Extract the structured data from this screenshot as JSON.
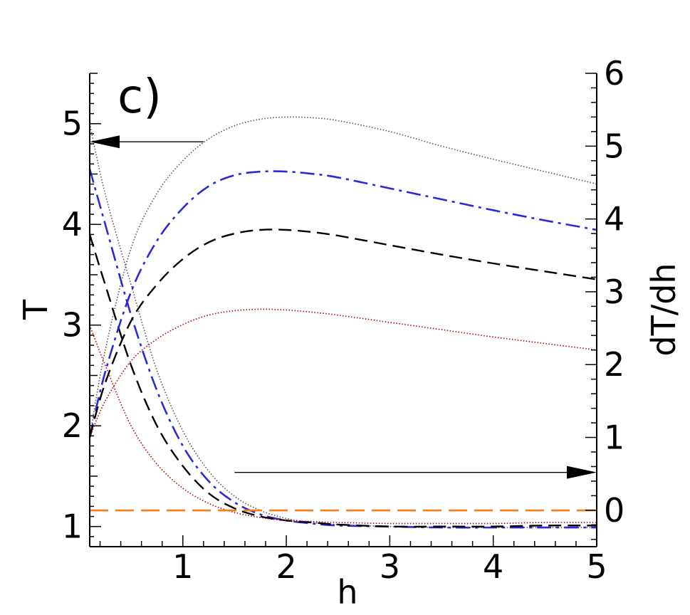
{
  "chart_data": {
    "type": "line",
    "panel_label": "c)",
    "xlabel": "h",
    "ylabel_left": "T",
    "ylabel_right": "dT/dh",
    "xlim": [
      0.1,
      5
    ],
    "ylim_left": [
      0.8,
      5.5
    ],
    "ylim_right": [
      -0.5,
      6
    ],
    "x_ticks": [
      "1",
      "2",
      "3",
      "4",
      "5"
    ],
    "x_tick_values": [
      1,
      2,
      3,
      4,
      5
    ],
    "y_left_ticks": [
      "1",
      "2",
      "3",
      "4",
      "5"
    ],
    "y_left_tick_values": [
      1,
      2,
      3,
      4,
      5
    ],
    "y_right_ticks": [
      "0",
      "1",
      "2",
      "3",
      "4",
      "5",
      "6"
    ],
    "y_right_tick_values": [
      0,
      1,
      2,
      3,
      4,
      5,
      6
    ],
    "grid": false,
    "arrows": [
      {
        "points_to": "left axis",
        "from": [
          1.2,
          4.82
        ],
        "to": [
          0.1,
          4.82
        ],
        "axis": "left"
      },
      {
        "points_to": "right axis",
        "from": [
          1.5,
          0.52
        ],
        "to": [
          5.0,
          0.52
        ],
        "axis": "right"
      }
    ],
    "series": [
      {
        "axis": "left",
        "style": "dotted",
        "color": "#555555",
        "x": [
          0.1,
          0.25,
          0.5,
          0.75,
          1.0,
          1.25,
          1.5,
          1.75,
          2.0,
          2.25,
          2.5,
          3.0,
          3.5,
          4.0,
          4.5,
          5.0
        ],
        "y": [
          5.0,
          4.3,
          3.4,
          2.55,
          1.95,
          1.55,
          1.3,
          1.16,
          1.08,
          1.04,
          1.02,
          1.0,
          0.99,
          0.99,
          0.99,
          0.99
        ]
      },
      {
        "axis": "left",
        "style": "dashdot",
        "color": "#2a2ad8",
        "x": [
          0.1,
          0.25,
          0.5,
          0.75,
          1.0,
          1.25,
          1.5,
          1.75,
          2.0,
          2.25,
          2.5,
          3.0,
          3.5,
          4.0,
          4.5,
          5.0
        ],
        "y": [
          4.55,
          4.0,
          3.1,
          2.35,
          1.8,
          1.45,
          1.24,
          1.12,
          1.06,
          1.03,
          1.01,
          1.0,
          0.99,
          0.99,
          0.99,
          0.99
        ]
      },
      {
        "axis": "left",
        "style": "dashed",
        "color": "#000000",
        "x": [
          0.1,
          0.25,
          0.5,
          0.75,
          1.0,
          1.25,
          1.5,
          1.75,
          2.0,
          2.25,
          2.5,
          3.0,
          3.5,
          4.0,
          4.5,
          5.0
        ],
        "y": [
          3.9,
          3.4,
          2.6,
          2.0,
          1.6,
          1.33,
          1.18,
          1.1,
          1.06,
          1.04,
          1.02,
          1.0,
          1.0,
          1.0,
          1.01,
          1.01
        ]
      },
      {
        "axis": "left",
        "style": "dotted",
        "color": "#b00000",
        "x": [
          0.1,
          0.25,
          0.5,
          0.75,
          1.0,
          1.25,
          1.5,
          1.75,
          2.0,
          2.25,
          2.5,
          3.0,
          3.5,
          4.0,
          4.5,
          5.0
        ],
        "y": [
          3.0,
          2.6,
          2.0,
          1.62,
          1.38,
          1.23,
          1.14,
          1.09,
          1.06,
          1.05,
          1.04,
          1.03,
          1.03,
          1.03,
          1.04,
          1.04
        ]
      },
      {
        "axis": "left",
        "style": "longdash",
        "color": "#f07f1a",
        "x": [
          0.1,
          5.0
        ],
        "y": [
          1.16,
          1.16
        ]
      },
      {
        "axis": "right",
        "style": "dotted",
        "color": "#555555",
        "x": [
          0.1,
          0.25,
          0.5,
          0.75,
          1.0,
          1.25,
          1.5,
          1.75,
          2.0,
          2.25,
          2.5,
          3.0,
          3.5,
          4.0,
          4.5,
          5.0
        ],
        "y": [
          1.0,
          2.2,
          3.6,
          4.35,
          4.8,
          5.1,
          5.28,
          5.37,
          5.4,
          5.39,
          5.35,
          5.2,
          5.0,
          4.82,
          4.65,
          4.48
        ]
      },
      {
        "axis": "right",
        "style": "dashdot",
        "color": "#2a2ad8",
        "x": [
          0.1,
          0.25,
          0.5,
          0.75,
          1.0,
          1.25,
          1.5,
          1.75,
          2.0,
          2.25,
          2.5,
          3.0,
          3.5,
          4.0,
          4.5,
          5.0
        ],
        "y": [
          1.0,
          1.9,
          3.0,
          3.7,
          4.15,
          4.45,
          4.6,
          4.65,
          4.65,
          4.62,
          4.57,
          4.42,
          4.27,
          4.12,
          3.98,
          3.85
        ]
      },
      {
        "axis": "right",
        "style": "dashed",
        "color": "#000000",
        "x": [
          0.1,
          0.25,
          0.5,
          0.75,
          1.0,
          1.25,
          1.5,
          1.75,
          2.0,
          2.25,
          2.5,
          3.0,
          3.5,
          4.0,
          4.5,
          5.0
        ],
        "y": [
          1.0,
          1.75,
          2.6,
          3.1,
          3.45,
          3.68,
          3.8,
          3.85,
          3.85,
          3.82,
          3.77,
          3.64,
          3.51,
          3.39,
          3.28,
          3.17
        ]
      },
      {
        "axis": "right",
        "style": "dotted",
        "color": "#b00000",
        "x": [
          0.1,
          0.25,
          0.5,
          0.75,
          1.0,
          1.25,
          1.5,
          1.75,
          2.0,
          2.25,
          2.5,
          3.0,
          3.5,
          4.0,
          4.5,
          5.0
        ],
        "y": [
          1.0,
          1.5,
          2.05,
          2.35,
          2.55,
          2.68,
          2.74,
          2.76,
          2.75,
          2.72,
          2.68,
          2.58,
          2.48,
          2.38,
          2.29,
          2.2
        ]
      }
    ]
  }
}
